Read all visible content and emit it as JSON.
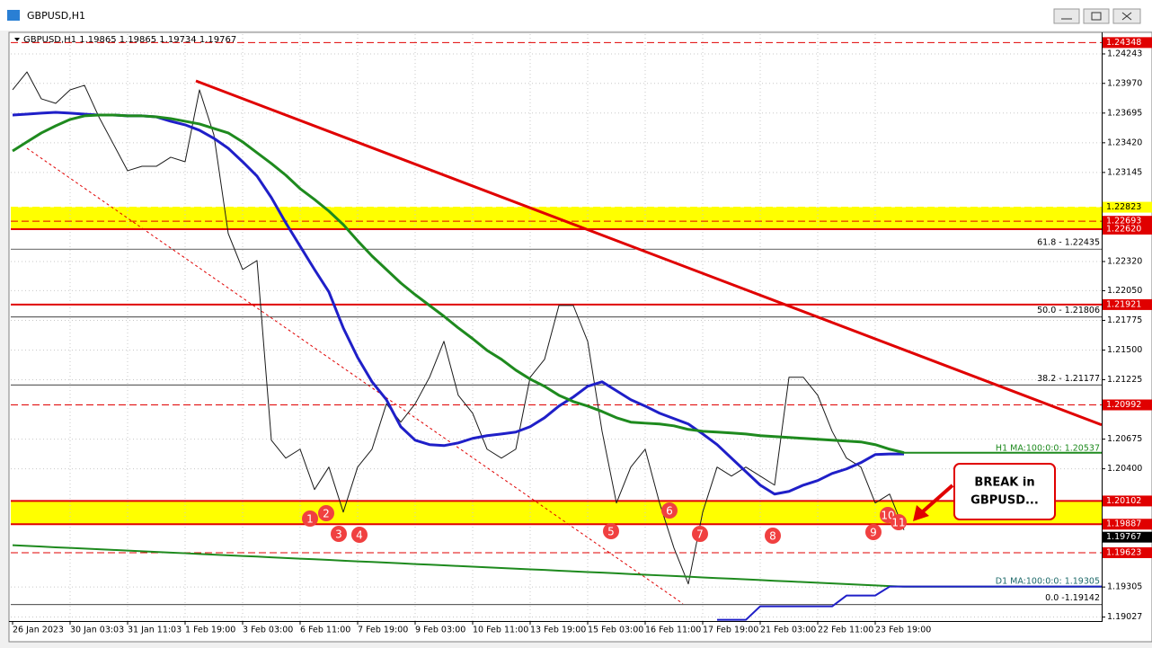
{
  "chart_data": {
    "type": "line",
    "window_title": "GBPUSD,H1",
    "header": "GBPUSD,H1  1.19865 1.19865 1.19734 1.19767",
    "ylim": [
      1.1899,
      1.24426
    ],
    "yticks": [
      {
        "value": 1.24243,
        "label": "1.24243"
      },
      {
        "value": 1.2397,
        "label": "1.23970"
      },
      {
        "value": 1.23695,
        "label": "1.23695"
      },
      {
        "value": 1.2342,
        "label": "1.23420"
      },
      {
        "value": 1.23145,
        "label": "1.23145"
      },
      {
        "value": 1.2232,
        "label": "1.22320"
      },
      {
        "value": 1.2205,
        "label": "1.22050"
      },
      {
        "value": 1.21775,
        "label": "1.21775"
      },
      {
        "value": 1.215,
        "label": "1.21500"
      },
      {
        "value": 1.21225,
        "label": "1.21225"
      },
      {
        "value": 1.20675,
        "label": "1.20675"
      },
      {
        "value": 1.204,
        "label": "1.20400"
      },
      {
        "value": 1.19305,
        "label": "1.19305"
      },
      {
        "value": 1.19027,
        "label": "1.19027"
      }
    ],
    "grid": true,
    "x_labels": [
      "26 Jan 2023",
      "30 Jan 03:03",
      "31 Jan 11:03",
      "1 Feb 19:00",
      "3 Feb 03:00",
      "6 Feb 11:00",
      "7 Feb 19:00",
      "9 Feb 03:00",
      "10 Feb 11:00",
      "13 Feb 19:00",
      "15 Feb 03:00",
      "16 Feb 11:00",
      "17 Feb 19:00",
      "21 Feb 03:00",
      "22 Feb 11:00",
      "23 Feb 19:00"
    ],
    "series": [
      {
        "color": "#1a1a1a",
        "width": 1,
        "values": [
          1.2391,
          1.24076,
          1.23827,
          1.23785,
          1.2391,
          1.23952,
          1.2366,
          1.23411,
          1.23161,
          1.23202,
          1.23202,
          1.23286,
          1.23244,
          1.2391,
          1.23494,
          1.22579,
          1.22246,
          1.22329,
          1.20665,
          1.20499,
          1.20582,
          1.20208,
          1.20416,
          1.19999,
          1.20416,
          1.20582,
          1.21002,
          1.20832,
          1.21002,
          1.21248,
          1.21581,
          1.21081,
          1.20915,
          1.20582,
          1.20499,
          1.20582,
          1.21248,
          1.21414,
          1.21913,
          1.21913,
          1.21581,
          1.20748,
          1.20083,
          1.20416,
          1.20582,
          1.20083,
          1.19667,
          1.19334,
          1.19999,
          1.20416,
          1.20333,
          1.20416,
          1.20333,
          1.20249,
          1.21248,
          1.21248,
          1.21081,
          1.20748,
          1.20499,
          1.20416,
          1.20083,
          1.20166,
          1.19833
        ]
      },
      {
        "color": "#1f1fc8",
        "width": 3,
        "extend": false,
        "values": [
          1.23677,
          1.23685,
          1.23694,
          1.23702,
          1.23694,
          1.23685,
          1.23677,
          1.23677,
          1.23669,
          1.23669,
          1.2366,
          1.23619,
          1.23586,
          1.23536,
          1.23461,
          1.23369,
          1.23244,
          1.23111,
          1.22912,
          1.22679,
          1.22462,
          1.22246,
          1.22038,
          1.21705,
          1.21431,
          1.21206,
          1.2104,
          1.2079,
          1.20665,
          1.20624,
          1.20615,
          1.2064,
          1.20682,
          1.20707,
          1.20723,
          1.2074,
          1.2079,
          1.20873,
          1.20981,
          1.21065,
          1.21164,
          1.21206,
          1.21123,
          1.2104,
          1.20981,
          1.20915,
          1.20865,
          1.20815,
          1.20723,
          1.20624,
          1.20499,
          1.20374,
          1.20249,
          1.20166,
          1.20191,
          1.20249,
          1.20291,
          1.20357,
          1.20399,
          1.20457,
          1.20532,
          1.20537,
          1.20537
        ]
      },
      {
        "color": "#1e8a1e",
        "width": 3,
        "extend": true,
        "values": [
          1.23344,
          1.23428,
          1.23511,
          1.23577,
          1.23636,
          1.23669,
          1.23677,
          1.23677,
          1.23669,
          1.23669,
          1.2366,
          1.23644,
          1.23619,
          1.23594,
          1.23552,
          1.23511,
          1.23428,
          1.23328,
          1.23228,
          1.2312,
          1.22995,
          1.22895,
          1.22787,
          1.22662,
          1.22512,
          1.22371,
          1.22246,
          1.22121,
          1.22013,
          1.21913,
          1.21813,
          1.21705,
          1.21605,
          1.21497,
          1.21414,
          1.21314,
          1.21231,
          1.21164,
          1.21081,
          1.21023,
          1.20981,
          1.20931,
          1.20873,
          1.20832,
          1.20823,
          1.20815,
          1.20798,
          1.20765,
          1.20748,
          1.2074,
          1.20732,
          1.20723,
          1.20707,
          1.20699,
          1.2069,
          1.20682,
          1.20674,
          1.20665,
          1.20657,
          1.20649,
          1.20624,
          1.20582,
          1.20549
        ]
      },
      {
        "color": "#1e8a1e",
        "width": 2,
        "extend": true,
        "values": [
          1.19692,
          1.19686,
          1.1968,
          1.19673,
          1.19667,
          1.19661,
          1.19655,
          1.19649,
          1.19642,
          1.19636,
          1.1963,
          1.19624,
          1.19618,
          1.19611,
          1.19605,
          1.19599,
          1.19593,
          1.19587,
          1.1958,
          1.19574,
          1.19568,
          1.19562,
          1.19556,
          1.19549,
          1.19543,
          1.19537,
          1.19531,
          1.19525,
          1.19518,
          1.19512,
          1.19506,
          1.195,
          1.19494,
          1.19487,
          1.19481,
          1.19475,
          1.19469,
          1.19463,
          1.19456,
          1.1945,
          1.19444,
          1.19438,
          1.19432,
          1.19425,
          1.19419,
          1.19413,
          1.19407,
          1.19401,
          1.19394,
          1.19388,
          1.19382,
          1.19376,
          1.1937,
          1.19363,
          1.19357,
          1.19351,
          1.19345,
          1.19339,
          1.19332,
          1.19326,
          1.1932,
          1.19314,
          1.19308
        ]
      },
      {
        "color": "#1f1fc8",
        "width": 2,
        "extend": true,
        "values": [
          null,
          null,
          null,
          null,
          null,
          null,
          null,
          null,
          null,
          null,
          null,
          null,
          null,
          null,
          null,
          null,
          null,
          null,
          null,
          null,
          null,
          null,
          null,
          null,
          null,
          null,
          null,
          null,
          null,
          null,
          null,
          null,
          null,
          null,
          null,
          null,
          null,
          null,
          null,
          null,
          null,
          null,
          null,
          null,
          null,
          null,
          null,
          null,
          null,
          1.19001,
          1.19001,
          1.19001,
          1.19126,
          1.19126,
          1.19126,
          1.19126,
          1.19126,
          1.19126,
          1.19226,
          1.19226,
          1.19226,
          1.19309,
          1.19309
        ]
      }
    ],
    "bands": [
      {
        "values": [
          1.2262,
          1.22823
        ],
        "color": "#ffff00"
      },
      {
        "values": [
          1.19887,
          1.20102
        ],
        "color": "#ffff00"
      }
    ],
    "levels": [
      {
        "value": 1.24348,
        "label": "1.24348",
        "color": "#e00000",
        "text_color": "#ffffff",
        "style": "dashed"
      },
      {
        "value": 1.22823,
        "label": "1.22823",
        "color": "#ffff00",
        "text_color": "#000000",
        "style": "dashed"
      },
      {
        "value": 1.22693,
        "label": "1.22693",
        "color": "#e00000",
        "text_color": "#ffffff",
        "style": "dashed"
      },
      {
        "value": 1.2262,
        "label": "1.22620",
        "color": "#e00000",
        "text_color": "#ffffff",
        "style": "solid"
      },
      {
        "value": 1.21921,
        "label": "1.21921",
        "color": "#e00000",
        "text_color": "#ffffff",
        "style": "solid"
      },
      {
        "value": 1.20992,
        "label": "1.20992",
        "color": "#e00000",
        "text_color": "#ffffff",
        "style": "dashed"
      },
      {
        "value": 1.20102,
        "label": "1.20102",
        "color": "#e00000",
        "text_color": "#ffffff",
        "style": "solid"
      },
      {
        "value": 1.19887,
        "label": "1.19887",
        "color": "#e00000",
        "text_color": "#ffffff",
        "style": "solid"
      },
      {
        "value": 1.19767,
        "label": "1.19767",
        "color": "#000000",
        "text_color": "#ffffff",
        "style": "none"
      },
      {
        "value": 1.19623,
        "label": "1.19623",
        "color": "#e00000",
        "text_color": "#ffffff",
        "style": "dashed"
      }
    ],
    "fib_levels": [
      {
        "value": 1.22435,
        "label": "61.8 - 1.22435"
      },
      {
        "value": 1.21806,
        "label": "50.0 - 1.21806"
      },
      {
        "value": 1.21177,
        "label": "38.2 - 1.21177"
      },
      {
        "value": 1.19142,
        "label": "0.0 -1.19142"
      }
    ],
    "ma_labels": [
      {
        "value": 1.20537,
        "label": "H1 MA:100:0:0: 1.20537",
        "color": "#1e8a1e"
      },
      {
        "value": 1.19305,
        "label": "D1 MA:100:0:0: 1.19305",
        "color": "#1e6a6a"
      }
    ],
    "trendlines": [
      {
        "values": [
          1.23993,
          1.20807
        ],
        "color": "#e00000",
        "width": 3,
        "style": "solid"
      },
      {
        "values": [
          1.23369,
          1.19151
        ],
        "color": "#e00000",
        "width": 1,
        "style": "dashed"
      }
    ],
    "touch_labels": [
      "1",
      "2",
      "3",
      "4",
      "5",
      "6",
      "7",
      "8",
      "9",
      "10",
      "11"
    ],
    "callout": [
      "BREAK in",
      "GBPUSD..."
    ]
  }
}
